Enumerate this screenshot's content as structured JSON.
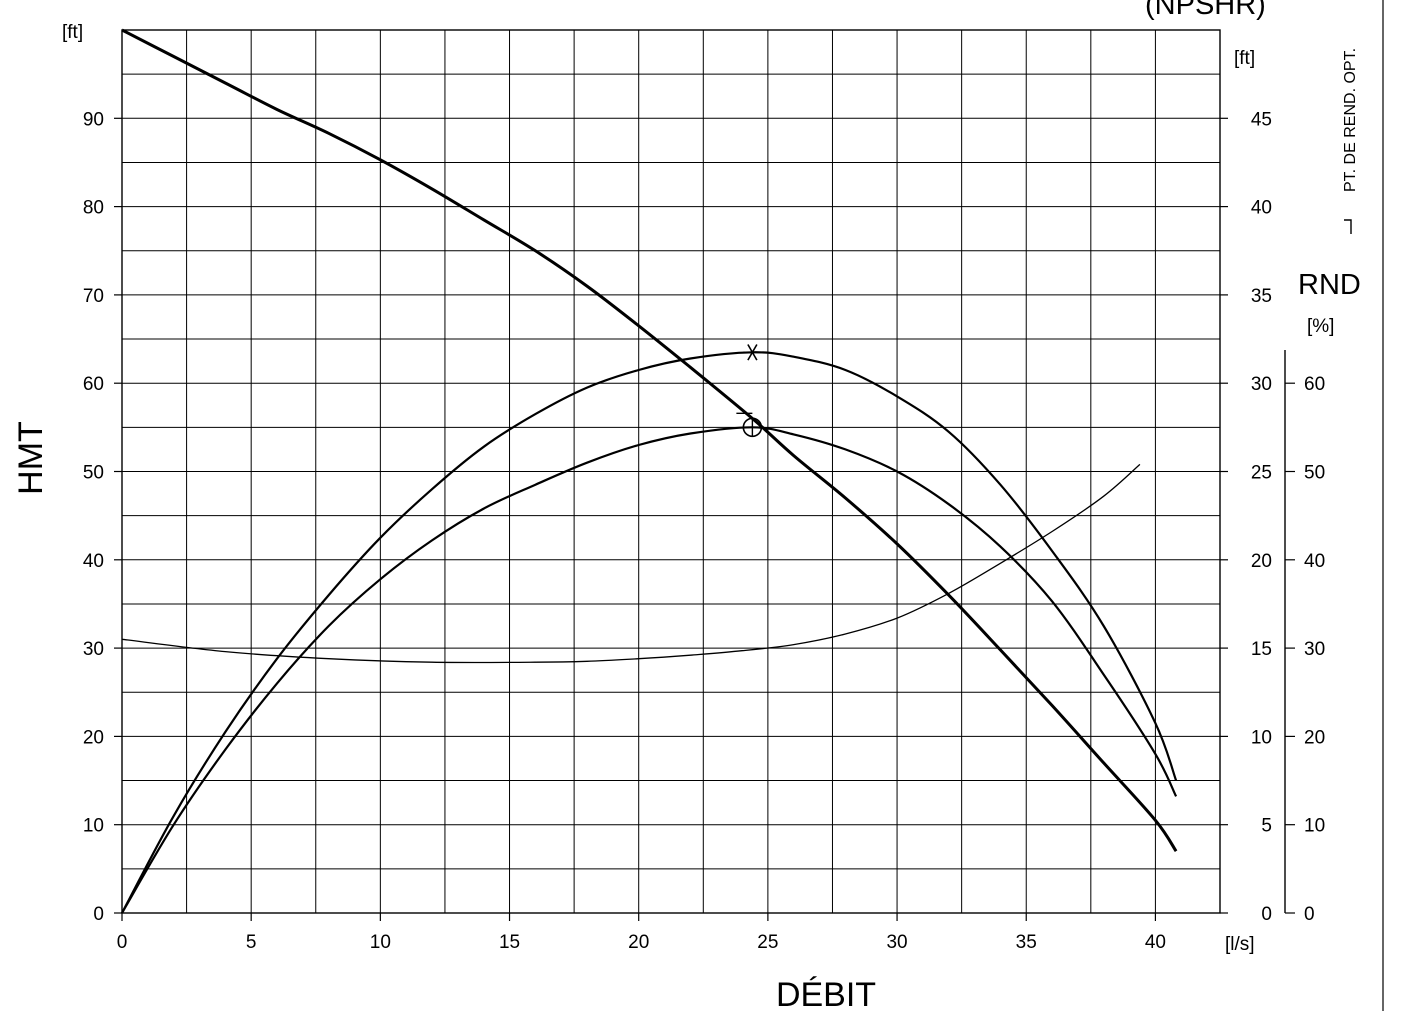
{
  "chart_data": {
    "type": "line",
    "title": "",
    "xlabel": "DÉBIT",
    "ylabel": "HMT",
    "x_unit": "[l/s]",
    "y_unit": "[ft]",
    "xlim": [
      0,
      42.5
    ],
    "ylim": [
      0,
      100
    ],
    "x_ticks": [
      0,
      5,
      10,
      15,
      20,
      25,
      30,
      35,
      40
    ],
    "y_ticks": [
      0,
      10,
      20,
      30,
      40,
      50,
      60,
      70,
      80,
      90
    ],
    "grid": true,
    "npshr_axis": {
      "label": "(NPSHR)",
      "unit": "[ft]",
      "range": [
        0,
        50
      ],
      "ticks": [
        0,
        5,
        10,
        15,
        20,
        25,
        30,
        35,
        40,
        45
      ]
    },
    "eff_axis": {
      "label": "RND",
      "unit": "[%]",
      "range": [
        0,
        100
      ],
      "ticks": [
        0,
        10,
        20,
        30,
        40,
        50,
        60
      ]
    },
    "side_note": "PT. DE REND. OPT.",
    "series": [
      {
        "axis": "hmt",
        "x": [
          0,
          2,
          4,
          6,
          8,
          10,
          12,
          14,
          16,
          18,
          20,
          22,
          24.4,
          26,
          28,
          30,
          32,
          34,
          36,
          38,
          40,
          40.8
        ],
        "y": [
          100,
          97,
          94,
          91,
          88.3,
          85.3,
          82,
          78.5,
          75,
          71,
          66.5,
          61.8,
          56,
          51.8,
          47,
          41.8,
          36,
          29.8,
          23.5,
          17,
          10.5,
          7
        ]
      },
      {
        "axis": "eff",
        "x": [
          0,
          2,
          4,
          6,
          8,
          10,
          12,
          14,
          16,
          18,
          20,
          22,
          24.4,
          26,
          28,
          30,
          32,
          34,
          36,
          38,
          40,
          40.8
        ],
        "y": [
          0,
          10,
          18.5,
          26,
          32.5,
          37.8,
          42.2,
          45.8,
          48.5,
          51,
          53,
          54.3,
          55,
          54.2,
          52.5,
          50,
          46.3,
          41.5,
          35.3,
          27,
          18,
          13.2
        ]
      },
      {
        "axis": "eff",
        "x": [
          0,
          2,
          4,
          6,
          8,
          10,
          12,
          14,
          16,
          18,
          20,
          22,
          24.4,
          26,
          28,
          30,
          32,
          34,
          36,
          38,
          40,
          40.8
        ],
        "y": [
          0,
          11,
          20.5,
          28.8,
          36,
          42.5,
          48,
          52.8,
          56.5,
          59.5,
          61.5,
          62.8,
          63.5,
          63,
          61.5,
          58.5,
          54.5,
          48.5,
          41,
          32.5,
          21.5,
          15
        ]
      },
      {
        "axis": "npshr",
        "x": [
          0,
          4,
          8,
          12,
          16,
          18,
          20,
          22,
          24,
          26,
          28,
          30,
          32,
          34,
          36,
          38,
          39.4
        ],
        "y": [
          15.5,
          14.8,
          14.4,
          14.2,
          14.2,
          14.25,
          14.4,
          14.6,
          14.85,
          15.2,
          15.8,
          16.7,
          18.1,
          19.8,
          21.6,
          23.6,
          25.4
        ]
      }
    ],
    "markers": [
      {
        "symbol": "asterisk",
        "x": 24.4,
        "y": 63.5,
        "axis": "eff"
      },
      {
        "symbol": "circle-cross",
        "x": 24.4,
        "y": 55,
        "axis": "eff"
      }
    ]
  }
}
